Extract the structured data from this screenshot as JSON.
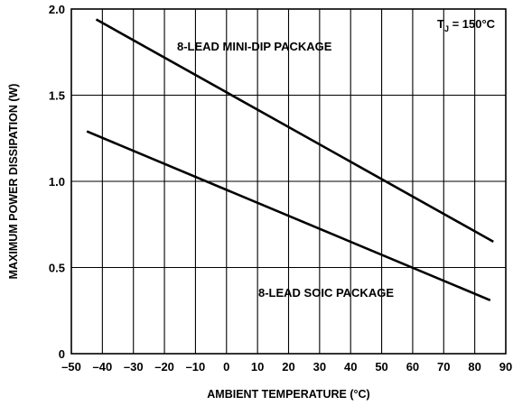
{
  "chart_data": {
    "type": "line",
    "title": "",
    "xlabel": "AMBIENT TEMPERATURE (°C)",
    "ylabel": "MAXIMUM POWER DISSIPATION (W)",
    "xlim": [
      -50,
      90
    ],
    "ylim": [
      0,
      2.0
    ],
    "grid": true,
    "x_ticks": [
      -50,
      -40,
      -30,
      -20,
      -10,
      0,
      10,
      20,
      30,
      40,
      50,
      60,
      70,
      80,
      90
    ],
    "x_tick_labels": [
      "–50",
      "–40",
      "–30",
      "–20",
      "–10",
      "0",
      "10",
      "20",
      "30",
      "40",
      "50",
      "60",
      "70",
      "80",
      "90"
    ],
    "y_ticks": [
      0,
      0.5,
      1.0,
      1.5,
      2.0
    ],
    "y_tick_labels": [
      "0",
      "0.5",
      "1.0",
      "1.5",
      "2.0"
    ],
    "series": [
      {
        "name": "8-LEAD MINI-DIP PACKAGE",
        "x": [
          -42,
          86
        ],
        "y": [
          1.94,
          0.65
        ]
      },
      {
        "name": "8-LEAD SOIC PACKAGE",
        "x": [
          -45,
          85
        ],
        "y": [
          1.29,
          0.31
        ]
      }
    ],
    "annotations": {
      "tj_main": "T",
      "tj_sub": "J",
      "tj_rest": " = 150°C"
    }
  }
}
